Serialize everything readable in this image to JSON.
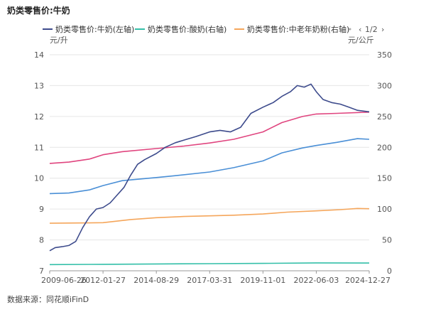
{
  "header": {
    "title": "奶类零售价:牛奶"
  },
  "footer": {
    "source": "数据来源：同花顺iFinD"
  },
  "legend": {
    "page": "1/2",
    "prev_icon": "chevron-left-icon",
    "next_icon": "chevron-right-icon"
  },
  "colors": {
    "milk": "#3d4b8c",
    "yogurt": "#33bfa8",
    "elder_milk_powder": "#f5a65b",
    "pink_series": "#e0457f",
    "blue_series": "#4a8fd6",
    "grid": "#e6e6e6",
    "axis": "#999999"
  },
  "chart_data": {
    "type": "line",
    "title": "奶类零售价:牛奶",
    "left_unit": "元/升",
    "right_unit": "元/公斤",
    "x_ticks": [
      "2009-06-26",
      "2012-01-27",
      "2014-08-29",
      "2017-03-31",
      "2019-11-01",
      "2022-06-03",
      "2024-12-27"
    ],
    "x_range": [
      "2009-06-26",
      "2024-12-27"
    ],
    "y_left": {
      "range": [
        7,
        14
      ],
      "ticks": [
        "7",
        "8",
        "9",
        "10",
        "11",
        "12",
        "13",
        "14"
      ]
    },
    "y_right": {
      "range": [
        0,
        350
      ],
      "ticks": [
        "0",
        "50",
        "100",
        "150",
        "200",
        "250",
        "300",
        "350"
      ]
    },
    "grid": true,
    "legend_position": "top",
    "series": [
      {
        "name": "奶类零售价:牛奶(左轴)",
        "axis": "left",
        "color": "#3d4b8c",
        "points": [
          [
            "2009-06-26",
            7.65
          ],
          [
            "2009-10-01",
            7.75
          ],
          [
            "2010-02-01",
            7.78
          ],
          [
            "2010-06-01",
            7.82
          ],
          [
            "2010-10-01",
            7.95
          ],
          [
            "2011-02-01",
            8.4
          ],
          [
            "2011-06-01",
            8.75
          ],
          [
            "2011-10-01",
            9.0
          ],
          [
            "2012-01-27",
            9.05
          ],
          [
            "2012-06-01",
            9.2
          ],
          [
            "2012-10-01",
            9.45
          ],
          [
            "2013-02-01",
            9.7
          ],
          [
            "2013-06-01",
            10.1
          ],
          [
            "2013-10-01",
            10.45
          ],
          [
            "2014-02-01",
            10.6
          ],
          [
            "2014-08-29",
            10.8
          ],
          [
            "2015-02-01",
            11.0
          ],
          [
            "2015-08-01",
            11.15
          ],
          [
            "2016-02-01",
            11.25
          ],
          [
            "2016-08-01",
            11.35
          ],
          [
            "2017-03-31",
            11.5
          ],
          [
            "2017-10-01",
            11.55
          ],
          [
            "2018-04-01",
            11.5
          ],
          [
            "2018-10-01",
            11.65
          ],
          [
            "2019-04-01",
            12.1
          ],
          [
            "2019-11-01",
            12.3
          ],
          [
            "2020-05-01",
            12.45
          ],
          [
            "2020-10-01",
            12.65
          ],
          [
            "2021-03-01",
            12.8
          ],
          [
            "2021-07-01",
            13.0
          ],
          [
            "2021-11-01",
            12.95
          ],
          [
            "2022-03-01",
            13.05
          ],
          [
            "2022-06-03",
            12.8
          ],
          [
            "2022-10-01",
            12.55
          ],
          [
            "2023-03-01",
            12.45
          ],
          [
            "2023-08-01",
            12.4
          ],
          [
            "2024-01-01",
            12.3
          ],
          [
            "2024-06-01",
            12.2
          ],
          [
            "2024-12-27",
            12.15
          ]
        ]
      },
      {
        "name": "奶类零售价:酸奶(右轴)",
        "axis": "right",
        "color": "#33bfa8",
        "points": [
          [
            "2009-06-26",
            10.0
          ],
          [
            "2012-01-27",
            10.5
          ],
          [
            "2014-08-29",
            11.0
          ],
          [
            "2017-03-31",
            11.5
          ],
          [
            "2019-11-01",
            12.0
          ],
          [
            "2022-06-03",
            12.8
          ],
          [
            "2024-12-27",
            12.5
          ]
        ]
      },
      {
        "name": "奶类零售价:中老年奶粉(右轴)",
        "axis": "right",
        "color": "#f5a65b",
        "points": [
          [
            "2009-06-26",
            77.0
          ],
          [
            "2011-01-01",
            77.5
          ],
          [
            "2012-01-27",
            78.0
          ],
          [
            "2013-06-01",
            83.0
          ],
          [
            "2014-08-29",
            86.0
          ],
          [
            "2016-01-01",
            88.0
          ],
          [
            "2017-03-31",
            89.0
          ],
          [
            "2018-06-01",
            90.0
          ],
          [
            "2019-11-01",
            92.0
          ],
          [
            "2021-01-01",
            95.0
          ],
          [
            "2022-06-03",
            97.0
          ],
          [
            "2023-08-01",
            99.0
          ],
          [
            "2024-06-01",
            101.0
          ],
          [
            "2024-12-27",
            100.5
          ]
        ]
      },
      {
        "axis": "right",
        "color": "#e0457f",
        "points": [
          [
            "2009-06-26",
            174.0
          ],
          [
            "2010-06-01",
            176.0
          ],
          [
            "2011-06-01",
            181.0
          ],
          [
            "2012-01-27",
            188.0
          ],
          [
            "2013-01-01",
            193.0
          ],
          [
            "2014-08-29",
            198.0
          ],
          [
            "2016-01-01",
            202.0
          ],
          [
            "2017-03-31",
            207.0
          ],
          [
            "2018-06-01",
            213.0
          ],
          [
            "2019-11-01",
            225.0
          ],
          [
            "2020-10-01",
            240.0
          ],
          [
            "2021-10-01",
            250.0
          ],
          [
            "2022-06-03",
            254.0
          ],
          [
            "2023-06-01",
            255.0
          ],
          [
            "2024-12-27",
            257.0
          ]
        ]
      },
      {
        "axis": "right",
        "color": "#4a8fd6",
        "points": [
          [
            "2009-06-26",
            125.0
          ],
          [
            "2010-06-01",
            126.0
          ],
          [
            "2011-06-01",
            131.0
          ],
          [
            "2012-01-27",
            138.0
          ],
          [
            "2013-01-01",
            146.0
          ],
          [
            "2014-08-29",
            151.0
          ],
          [
            "2015-08-01",
            154.0
          ],
          [
            "2017-03-31",
            160.0
          ],
          [
            "2018-06-01",
            167.0
          ],
          [
            "2019-11-01",
            178.0
          ],
          [
            "2020-10-01",
            191.0
          ],
          [
            "2021-10-01",
            199.0
          ],
          [
            "2022-06-03",
            203.0
          ],
          [
            "2023-06-01",
            208.0
          ],
          [
            "2024-06-01",
            214.0
          ],
          [
            "2024-12-27",
            213.0
          ]
        ]
      }
    ]
  }
}
